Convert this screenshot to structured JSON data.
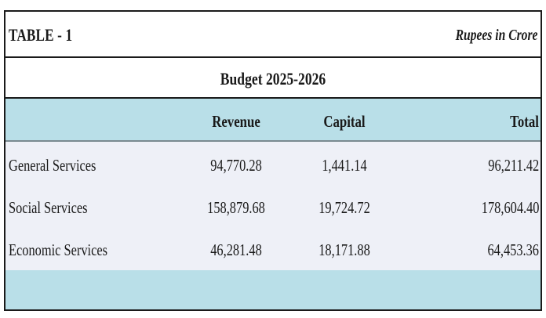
{
  "table": {
    "label": "TABLE - 1",
    "units": "Rupees in Crore",
    "budget_title": "Budget 2025-2026",
    "columns": [
      "",
      "Revenue",
      "Capital",
      "Total"
    ],
    "rows": [
      {
        "label": "General Services",
        "revenue": "94,770.28",
        "capital": "1,441.14",
        "total": "96,211.42"
      },
      {
        "label": "Social Services",
        "revenue": "158,879.68",
        "capital": "19,724.72",
        "total": "178,604.40"
      },
      {
        "label": "Economic Services",
        "revenue": "46,281.48",
        "capital": "18,171.88",
        "total": "64,453.36"
      }
    ]
  },
  "colors": {
    "header_band": "#b9dfe8",
    "body_band": "#eef0f7",
    "border": "#1a1a1a"
  }
}
